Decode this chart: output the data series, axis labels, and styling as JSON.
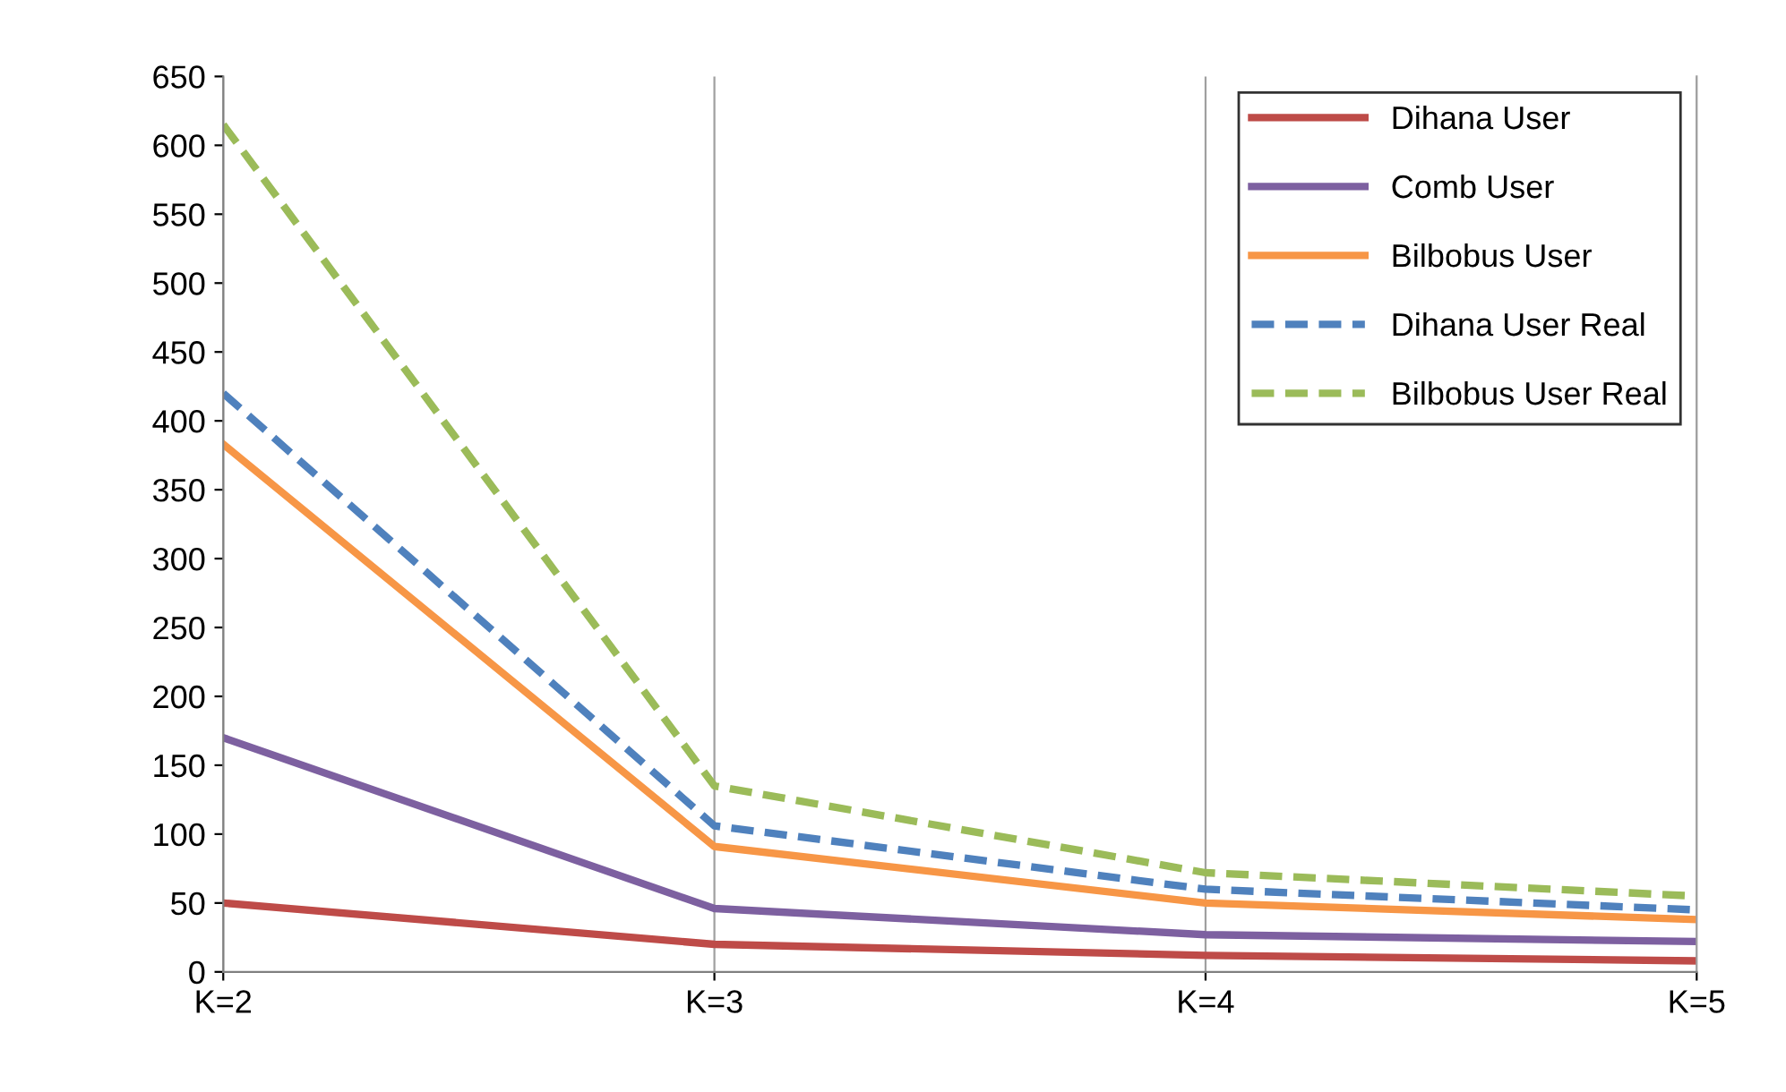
{
  "chart_data": {
    "type": "line",
    "categories": [
      "K=2",
      "K=3",
      "K=4",
      "K=5"
    ],
    "ylim": [
      0,
      650
    ],
    "yticks": [
      0,
      50,
      100,
      150,
      200,
      250,
      300,
      350,
      400,
      450,
      500,
      550,
      600,
      650
    ],
    "grid": "x",
    "legend": "top right",
    "marker": "none",
    "series": [
      {
        "name": "Dihana User",
        "color": "#be4b48",
        "line_style": "solid",
        "values": [
          50,
          20,
          12,
          8
        ]
      },
      {
        "name": "Comb User",
        "color": "#7d60a0",
        "line_style": "solid",
        "values": [
          170,
          46,
          27,
          22
        ]
      },
      {
        "name": "Bilbobus User",
        "color": "#f79646",
        "line_style": "solid",
        "values": [
          383,
          91,
          50,
          38
        ]
      },
      {
        "name": "Dihana User Real",
        "color": "#4f81bd",
        "line_style": "dashed",
        "values": [
          420,
          106,
          60,
          45
        ]
      },
      {
        "name": "Bilbobus User Real",
        "color": "#9bbb59",
        "line_style": "dashed",
        "values": [
          615,
          135,
          72,
          55
        ]
      }
    ]
  }
}
